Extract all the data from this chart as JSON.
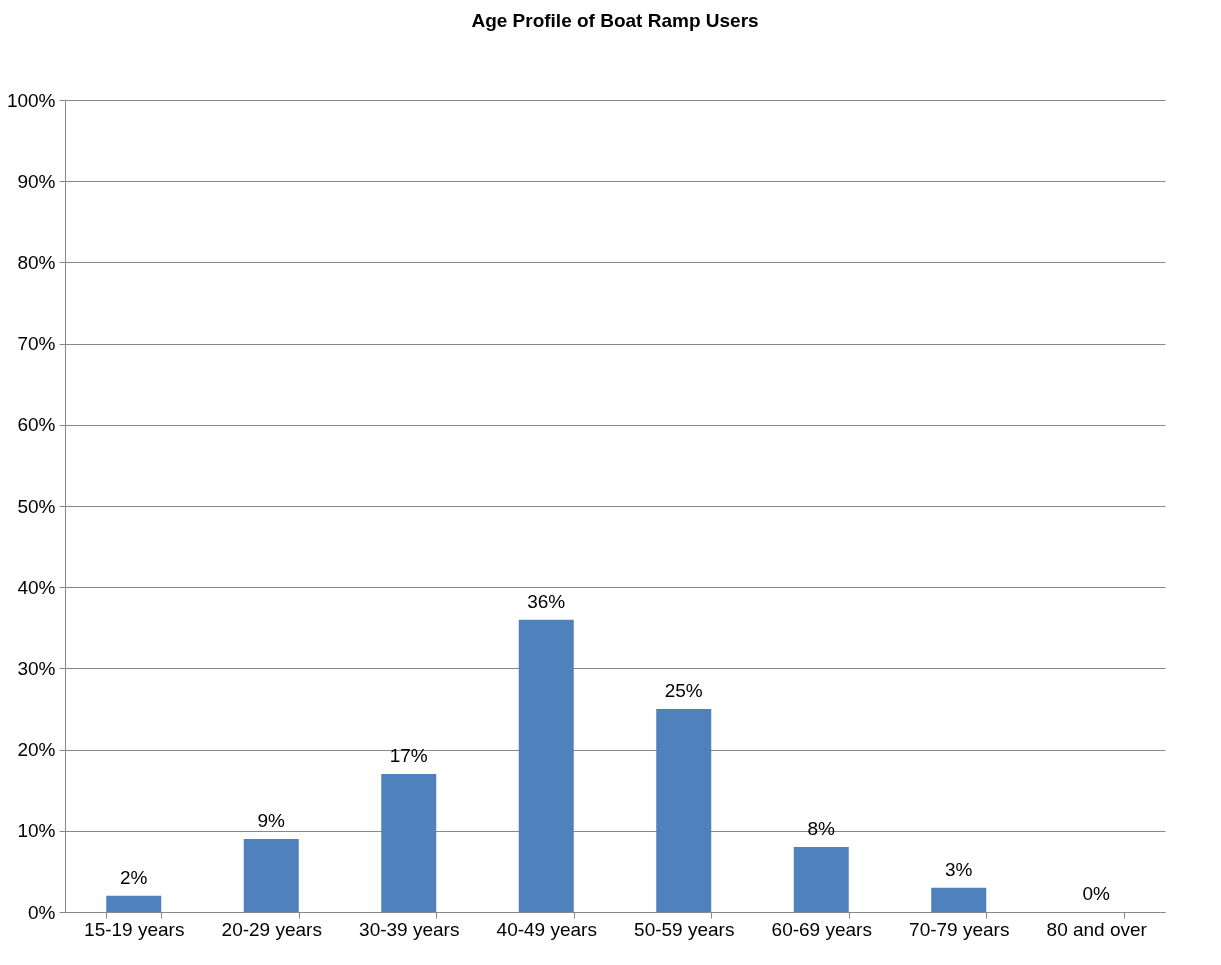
{
  "chart_data": {
    "type": "bar",
    "title": "Age Profile of Boat Ramp Users",
    "categories": [
      "15-19 years",
      "20-29 years",
      "30-39 years",
      "40-49 years",
      "50-59 years",
      "60-69 years",
      "70-79 years",
      "80 and over"
    ],
    "values": [
      2,
      9,
      17,
      36,
      25,
      8,
      3,
      0
    ],
    "value_labels": [
      "2%",
      "9%",
      "17%",
      "36%",
      "25%",
      "8%",
      "3%",
      "0%"
    ],
    "color": "#4f81bd",
    "ylim": [
      0,
      100
    ],
    "yticks": [
      {
        "value": 0,
        "label": "0%"
      },
      {
        "value": 10,
        "label": "10%"
      },
      {
        "value": 20,
        "label": "20%"
      },
      {
        "value": 30,
        "label": "30%"
      },
      {
        "value": 40,
        "label": "40%"
      },
      {
        "value": 50,
        "label": "50%"
      },
      {
        "value": 60,
        "label": "60%"
      },
      {
        "value": 70,
        "label": "70%"
      },
      {
        "value": 80,
        "label": "80%"
      },
      {
        "value": 90,
        "label": "90%"
      },
      {
        "value": 100,
        "label": "100%"
      }
    ],
    "grid": "y"
  }
}
